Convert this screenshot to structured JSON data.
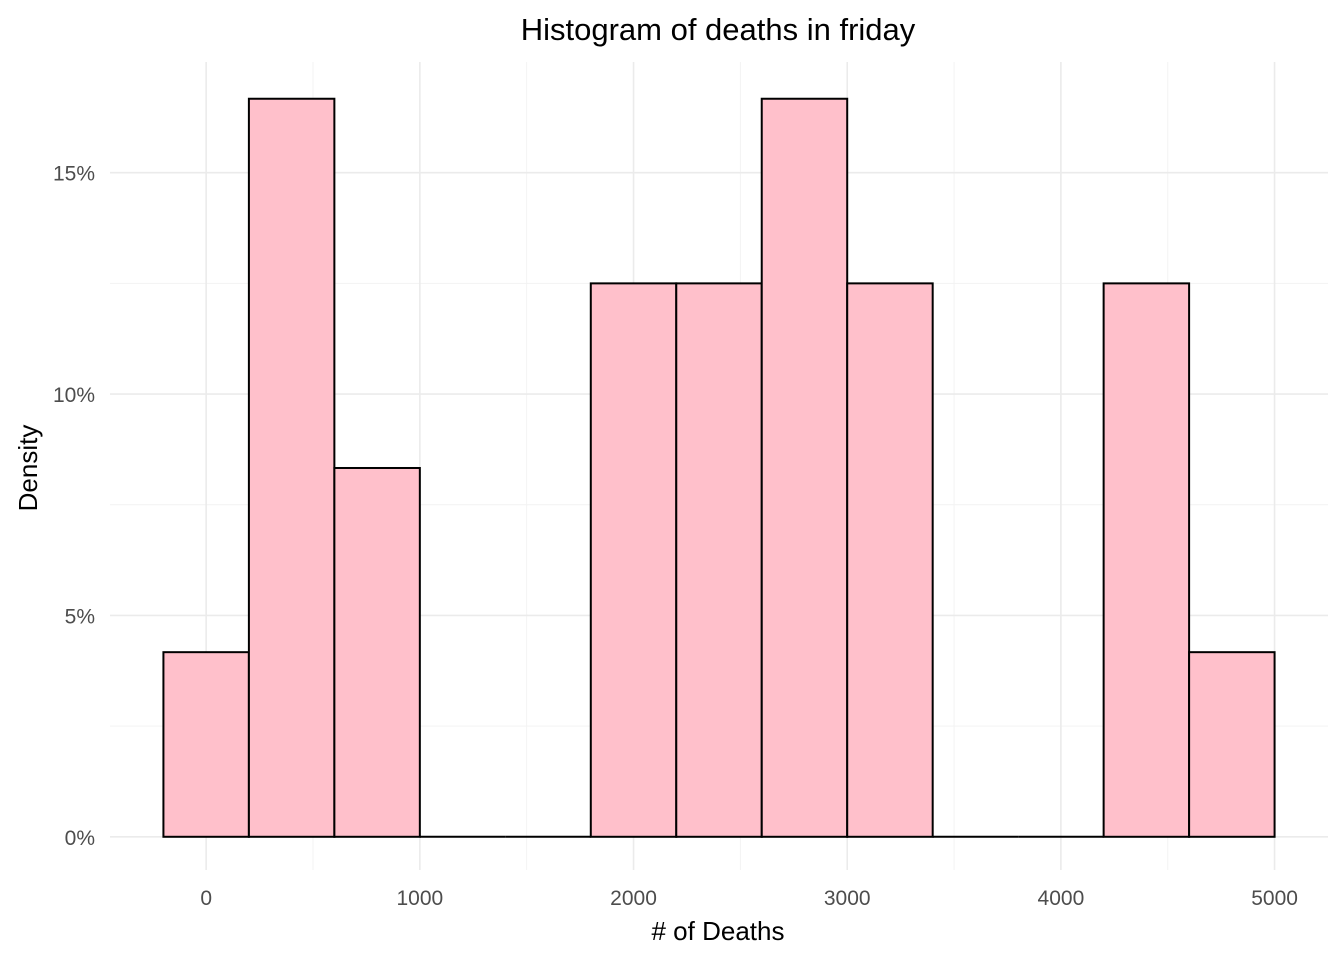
{
  "chart_data": {
    "type": "bar",
    "subtype": "histogram",
    "title": "Histogram of deaths in friday",
    "xlabel": "# of Deaths",
    "ylabel": "Density",
    "bin_width": 400,
    "bins": [
      {
        "start": -200,
        "end": 200,
        "value": 0.0417
      },
      {
        "start": 200,
        "end": 600,
        "value": 0.1667
      },
      {
        "start": 600,
        "end": 1000,
        "value": 0.0833
      },
      {
        "start": 1000,
        "end": 1400,
        "value": 0
      },
      {
        "start": 1400,
        "end": 1800,
        "value": 0
      },
      {
        "start": 1800,
        "end": 2200,
        "value": 0.125
      },
      {
        "start": 2200,
        "end": 2600,
        "value": 0.125
      },
      {
        "start": 2600,
        "end": 3000,
        "value": 0.1667
      },
      {
        "start": 3000,
        "end": 3400,
        "value": 0.125
      },
      {
        "start": 3400,
        "end": 3800,
        "value": 0
      },
      {
        "start": 3800,
        "end": 4200,
        "value": 0
      },
      {
        "start": 4200,
        "end": 4600,
        "value": 0.125
      },
      {
        "start": 4600,
        "end": 5000,
        "value": 0.0417
      }
    ],
    "xlim": [
      -450,
      5250
    ],
    "ylim": [
      -0.0075,
      0.175
    ],
    "x_ticks": [
      0,
      1000,
      2000,
      3000,
      4000,
      5000
    ],
    "x_tick_labels": [
      "0",
      "1000",
      "2000",
      "3000",
      "4000",
      "5000"
    ],
    "y_ticks": [
      0,
      0.05,
      0.1,
      0.15
    ],
    "y_tick_labels": [
      "0%",
      "5%",
      "10%",
      "15%"
    ],
    "grid": true,
    "legend": "none",
    "colors": {
      "bar_fill": "#ffc0cb",
      "bar_outline": "#000000"
    }
  }
}
